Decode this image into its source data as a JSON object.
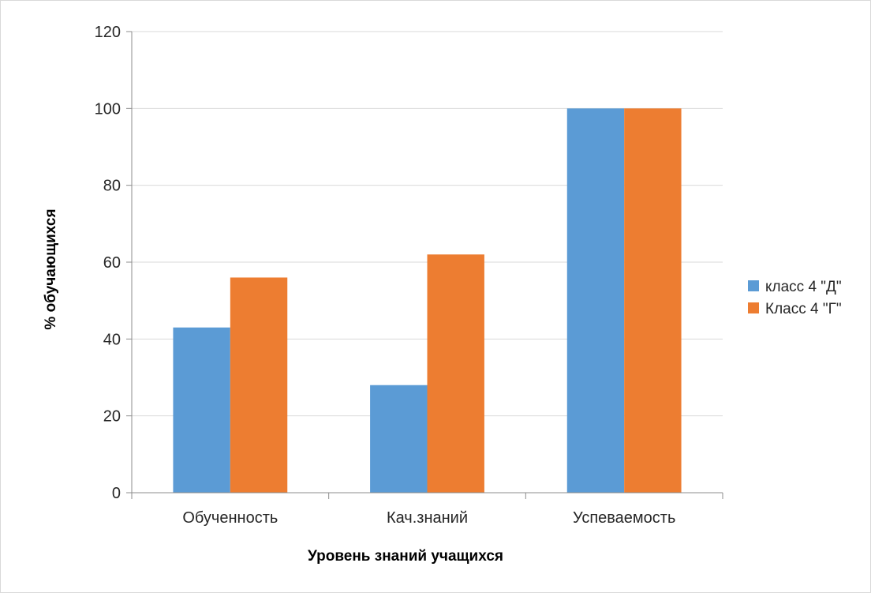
{
  "chart_data": {
    "type": "bar",
    "categories": [
      "Обученность",
      "Кач.знаний",
      "Успеваемость"
    ],
    "series": [
      {
        "name": "класс 4 \"Д\"",
        "values": [
          43,
          28,
          100
        ],
        "color": "#5b9bd5"
      },
      {
        "name": "Класс 4 \"Г\"",
        "values": [
          56,
          62,
          100
        ],
        "color": "#ed7d31"
      }
    ],
    "title": "",
    "xlabel": "Уровень знаний учащихся",
    "ylabel": "% обучающихся",
    "ylim": [
      0,
      120
    ],
    "yticks": [
      0,
      20,
      40,
      60,
      80,
      100,
      120
    ],
    "grid": true,
    "legend": "right"
  }
}
